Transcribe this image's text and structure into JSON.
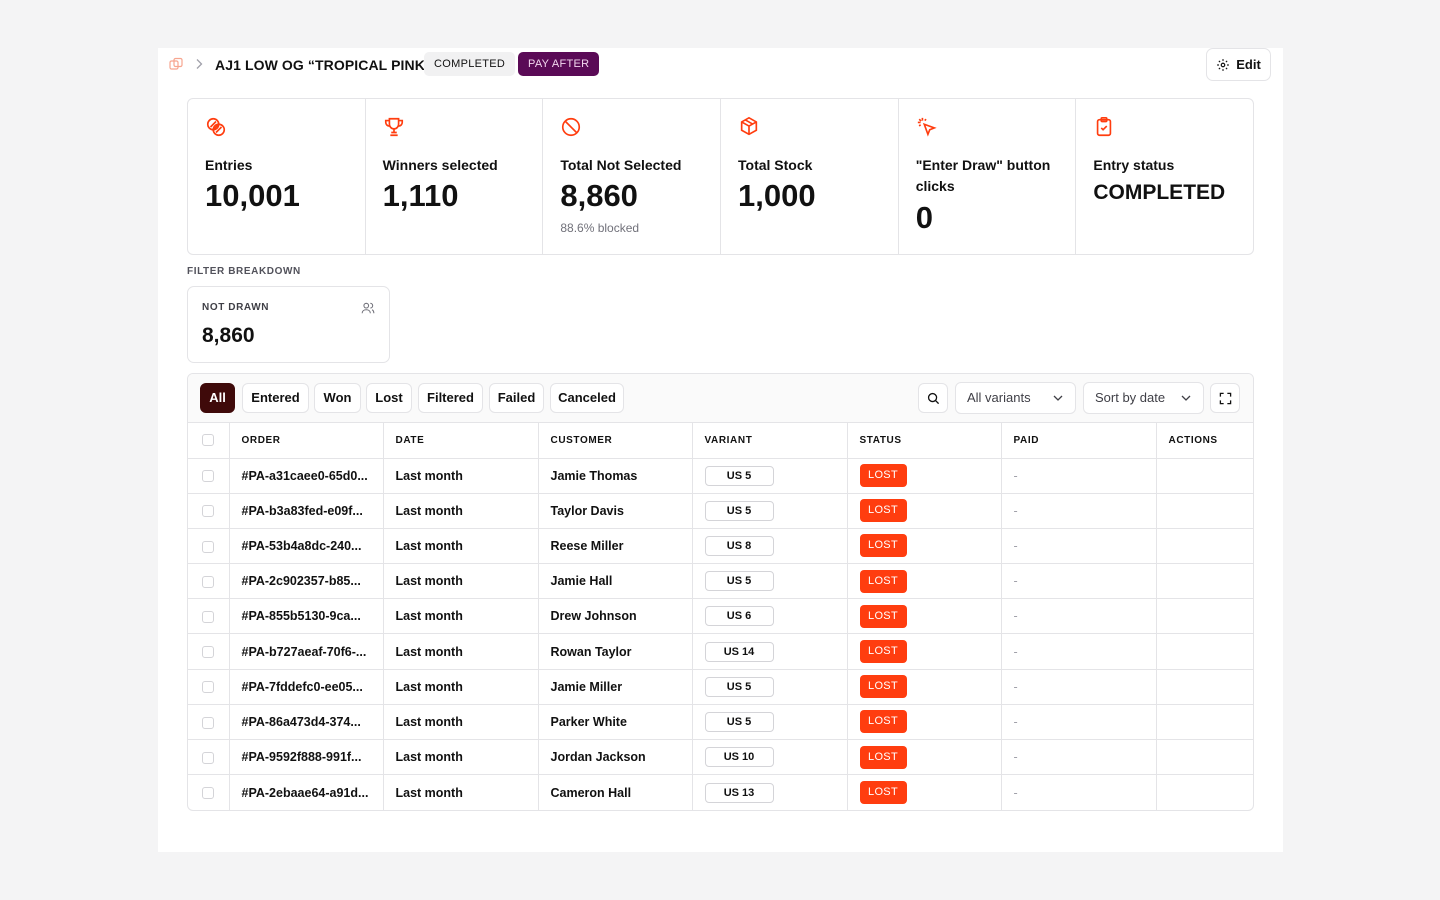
{
  "header": {
    "title": "AJ1 LOW OG “TROPICAL PINK”",
    "status_badge": "COMPLETED",
    "pay_badge": "PAY AFTER",
    "edit_label": "Edit"
  },
  "stats": [
    {
      "label": "Entries",
      "value": "10,001",
      "icon": "hand-coins-icon"
    },
    {
      "label": "Winners selected",
      "value": "1,110",
      "icon": "trophy-icon"
    },
    {
      "label": "Total Not Selected",
      "value": "8,860",
      "sub": "88.6% blocked",
      "icon": "ban-icon"
    },
    {
      "label": "Total Stock",
      "value": "1,000",
      "icon": "package-icon"
    },
    {
      "label": "\"Enter Draw\" button clicks",
      "value": "0",
      "icon": "mouse-pointer-click-icon"
    },
    {
      "label": "Entry status",
      "value": "COMPLETED",
      "icon": "clipboard-check-icon"
    }
  ],
  "filter_breakdown": {
    "section_label": "FILTER BREAKDOWN",
    "card": {
      "title": "NOT DRAWN",
      "value": "8,860",
      "icon": "users-icon"
    }
  },
  "toolbar": {
    "tabs": [
      "All",
      "Entered",
      "Won",
      "Lost",
      "Filtered",
      "Failed",
      "Canceled"
    ],
    "active_tab": "All",
    "variant_select": "All variants",
    "sort_select": "Sort by date"
  },
  "table": {
    "columns": [
      "ORDER",
      "DATE",
      "CUSTOMER",
      "VARIANT",
      "STATUS",
      "PAID",
      "ACTIONS"
    ],
    "rows": [
      {
        "order": "#PA-a31caee0-65d0...",
        "date": "Last month",
        "customer": "Jamie Thomas",
        "variant": "US 5",
        "status": "LOST",
        "paid": "-"
      },
      {
        "order": "#PA-b3a83fed-e09f...",
        "date": "Last month",
        "customer": "Taylor Davis",
        "variant": "US 5",
        "status": "LOST",
        "paid": "-"
      },
      {
        "order": "#PA-53b4a8dc-240...",
        "date": "Last month",
        "customer": "Reese Miller",
        "variant": "US 8",
        "status": "LOST",
        "paid": "-"
      },
      {
        "order": "#PA-2c902357-b85...",
        "date": "Last month",
        "customer": "Jamie Hall",
        "variant": "US 5",
        "status": "LOST",
        "paid": "-"
      },
      {
        "order": "#PA-855b5130-9ca...",
        "date": "Last month",
        "customer": "Drew Johnson",
        "variant": "US 6",
        "status": "LOST",
        "paid": "-"
      },
      {
        "order": "#PA-b727aeaf-70f6-...",
        "date": "Last month",
        "customer": "Rowan Taylor",
        "variant": "US 14",
        "status": "LOST",
        "paid": "-"
      },
      {
        "order": "#PA-7fddefc0-ee05...",
        "date": "Last month",
        "customer": "Jamie Miller",
        "variant": "US 5",
        "status": "LOST",
        "paid": "-"
      },
      {
        "order": "#PA-86a473d4-374...",
        "date": "Last month",
        "customer": "Parker White",
        "variant": "US 5",
        "status": "LOST",
        "paid": "-"
      },
      {
        "order": "#PA-9592f888-991f...",
        "date": "Last month",
        "customer": "Jordan Jackson",
        "variant": "US 10",
        "status": "LOST",
        "paid": "-"
      },
      {
        "order": "#PA-2ebaae64-a91d...",
        "date": "Last month",
        "customer": "Cameron Hall",
        "variant": "US 13",
        "status": "LOST",
        "paid": "-"
      }
    ]
  },
  "colors": {
    "accent": "#ff3d0f",
    "active_tab": "#3f0a0a",
    "pay_badge": "#5a0a56"
  }
}
